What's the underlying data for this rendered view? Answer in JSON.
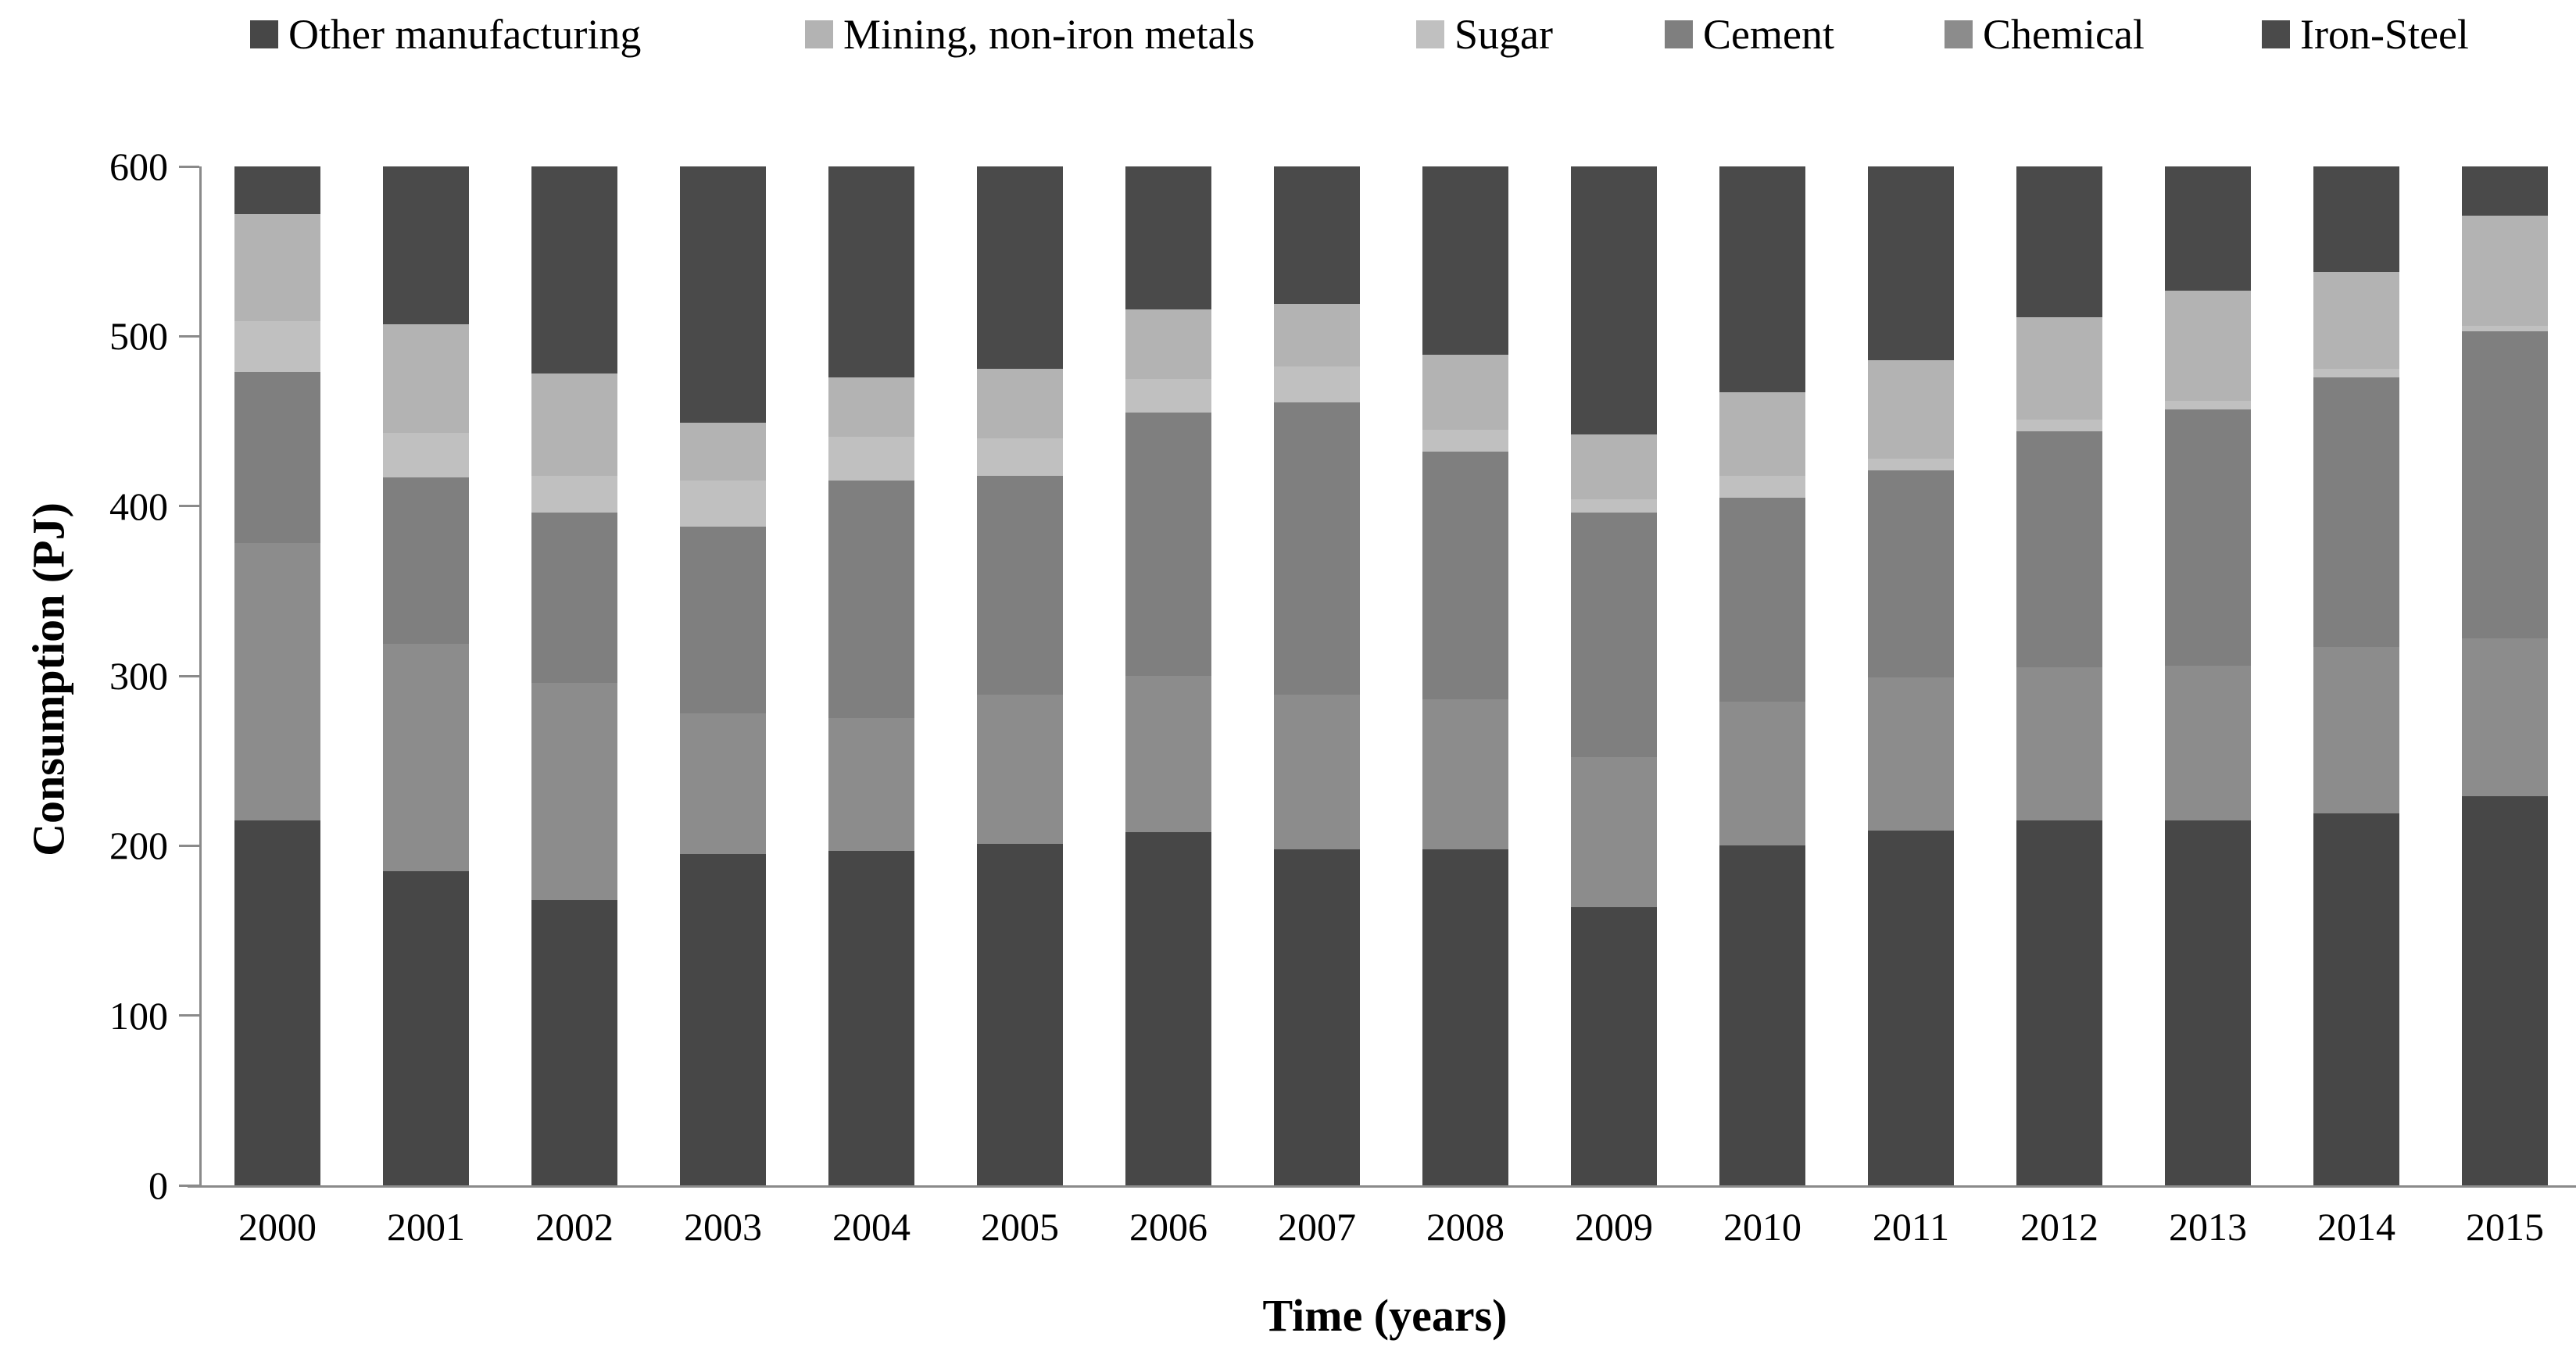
{
  "chart_data": {
    "type": "bar",
    "stacked": true,
    "xlabel": "Time (years)",
    "ylabel": "Consumption (PJ)",
    "ylim": [
      0,
      600
    ],
    "yticks": [
      0,
      100,
      200,
      300,
      400,
      500,
      600
    ],
    "grid": false,
    "legend_position": "top",
    "axis_color": "#8a8a8a",
    "categories": [
      "2000",
      "2001",
      "2002",
      "2003",
      "2004",
      "2005",
      "2006",
      "2007",
      "2008",
      "2009",
      "2010",
      "2011",
      "2012",
      "2013",
      "2014",
      "2015"
    ],
    "stack_order_bottom_to_top": [
      "Other manufacturing",
      "Chemical",
      "Cement",
      "Sugar",
      "Mining, non-iron metals",
      "Iron-Steel"
    ],
    "series": [
      {
        "name": "Other manufacturing",
        "color": "#474747",
        "values": [
          215,
          185,
          168,
          195,
          197,
          201,
          208,
          198,
          198,
          164,
          200,
          209,
          215,
          215,
          219,
          229
        ]
      },
      {
        "name": "Mining, non-iron metals",
        "color": "#b3b3b3",
        "values": [
          63,
          64,
          60,
          34,
          35,
          41,
          41,
          37,
          44,
          38,
          49,
          58,
          60,
          65,
          57,
          65
        ]
      },
      {
        "name": "Sugar",
        "color": "#c0c0c0",
        "values": [
          30,
          26,
          22,
          27,
          26,
          22,
          20,
          21,
          13,
          8,
          13,
          7,
          7,
          5,
          5,
          3
        ]
      },
      {
        "name": "Cement",
        "color": "#7f7f7f",
        "values": [
          101,
          98,
          100,
          110,
          140,
          129,
          155,
          172,
          146,
          144,
          120,
          122,
          139,
          151,
          159,
          181
        ]
      },
      {
        "name": "Chemical",
        "color": "#8c8c8c",
        "values": [
          163,
          134,
          128,
          83,
          78,
          88,
          92,
          91,
          88,
          88,
          85,
          90,
          90,
          91,
          98,
          93
        ]
      },
      {
        "name": "Iron-Steel",
        "color": "#4a4a4a",
        "values": [
          28,
          93,
          122,
          151,
          124,
          119,
          84,
          81,
          111,
          158,
          133,
          114,
          89,
          73,
          62,
          29
        ]
      }
    ]
  }
}
